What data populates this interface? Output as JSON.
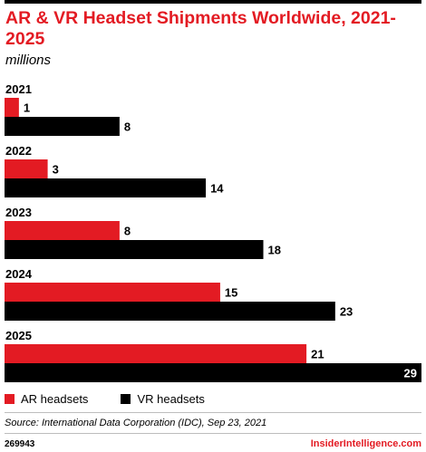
{
  "header": {
    "title": "AR & VR Headset Shipments Worldwide, 2021-2025",
    "subtitle": "millions"
  },
  "chart_data": {
    "type": "bar",
    "orientation": "horizontal",
    "title": "AR & VR Headset Shipments Worldwide, 2021-2025",
    "subtitle": "millions",
    "categories": [
      "2021",
      "2022",
      "2023",
      "2024",
      "2025"
    ],
    "series": [
      {
        "name": "AR headsets",
        "color": "#e31b23",
        "values": [
          1,
          3,
          8,
          15,
          21
        ]
      },
      {
        "name": "VR headsets",
        "color": "#000000",
        "values": [
          8,
          14,
          18,
          23,
          29
        ]
      }
    ],
    "xlim": [
      0,
      29
    ],
    "grid": false,
    "legend_position": "bottom-left"
  },
  "legend": {
    "ar_label": "AR headsets",
    "vr_label": "VR headsets"
  },
  "footer": {
    "source": "Source: International Data Corporation (IDC), Sep 23, 2021",
    "chart_id": "269943",
    "brand": "InsiderIntelligence.com"
  }
}
